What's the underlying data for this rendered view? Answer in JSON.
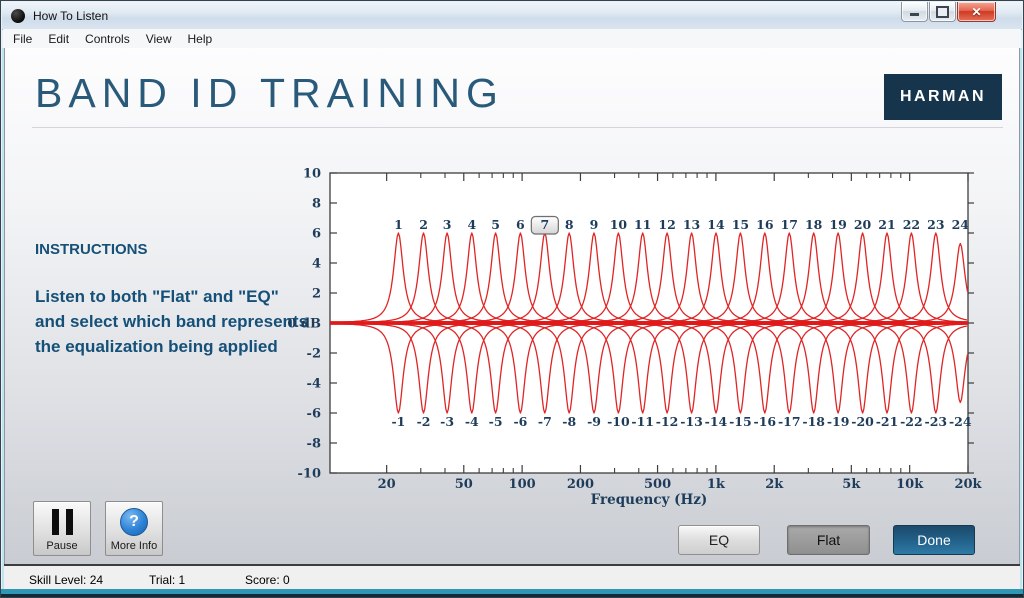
{
  "window": {
    "title": "How To Listen",
    "menu": [
      "File",
      "Edit",
      "Controls",
      "View",
      "Help"
    ]
  },
  "header": {
    "title": "BAND ID TRAINING",
    "brand": "HARMAN"
  },
  "instructions": {
    "heading": "INSTRUCTIONS",
    "body": "Listen to both \"Flat\" and \"EQ\" and select which band represents the equalization being applied"
  },
  "controls": {
    "pause": "Pause",
    "more_info": "More Info",
    "eq": "EQ",
    "flat": "Flat",
    "done": "Done"
  },
  "status": {
    "items": [
      "Skill Level: 24",
      "Trial: 1",
      "Score: 0"
    ]
  },
  "icons": {
    "app_icon": "black-sphere",
    "minimize": "minimize-bar",
    "maximize": "restore-box",
    "close": "✕",
    "question_mark": "?"
  },
  "colors": {
    "brand_navy": "#16344c",
    "heading_blue": "#2a5a7a",
    "instruction_blue": "#155078",
    "done_button_blue": "#226089",
    "curve_red": "#e02525",
    "chart_text_navy": "#1e3c5a",
    "bottom_accent_teal": "#2f97b4"
  },
  "chart_data": {
    "type": "line",
    "title": "",
    "xlabel": "Frequency (Hz)",
    "x_scale": "log",
    "x_min_hz": 10.2,
    "x_max_hz": 20000,
    "ylim": [
      -10,
      10
    ],
    "y_tick_step": 2,
    "zero_label": "0 dB",
    "x_major_ticks": [
      [
        20,
        "20"
      ],
      [
        50,
        "50"
      ],
      [
        100,
        "100"
      ],
      [
        200,
        "200"
      ],
      [
        500,
        "500"
      ],
      [
        1000,
        "1k"
      ],
      [
        2000,
        "2k"
      ],
      [
        5000,
        "5k"
      ],
      [
        10000,
        "10k"
      ],
      [
        20000,
        "20k"
      ]
    ],
    "x_minor_ticks_hz": [
      30,
      40,
      60,
      70,
      80,
      90,
      300,
      400,
      600,
      700,
      800,
      900,
      3000,
      4000,
      6000,
      7000,
      8000,
      9000
    ],
    "boost_db": 6,
    "cut_db": -6,
    "selected_band": 7,
    "bands": [
      {
        "num": 1,
        "hz": 23
      },
      {
        "num": 2,
        "hz": 31
      },
      {
        "num": 3,
        "hz": 41
      },
      {
        "num": 4,
        "hz": 55
      },
      {
        "num": 5,
        "hz": 73
      },
      {
        "num": 6,
        "hz": 98
      },
      {
        "num": 7,
        "hz": 131
      },
      {
        "num": 8,
        "hz": 175
      },
      {
        "num": 9,
        "hz": 235
      },
      {
        "num": 10,
        "hz": 314
      },
      {
        "num": 11,
        "hz": 419
      },
      {
        "num": 12,
        "hz": 560
      },
      {
        "num": 13,
        "hz": 749
      },
      {
        "num": 14,
        "hz": 1001
      },
      {
        "num": 15,
        "hz": 1338
      },
      {
        "num": 16,
        "hz": 1789
      },
      {
        "num": 17,
        "hz": 2392
      },
      {
        "num": 18,
        "hz": 3197
      },
      {
        "num": 19,
        "hz": 4274
      },
      {
        "num": 20,
        "hz": 5714
      },
      {
        "num": 21,
        "hz": 7638
      },
      {
        "num": 22,
        "hz": 10210
      },
      {
        "num": 23,
        "hz": 13649
      },
      {
        "num": 24,
        "hz": 18246,
        "peak_db": 5.3
      }
    ],
    "legend": "none",
    "grid": false
  }
}
